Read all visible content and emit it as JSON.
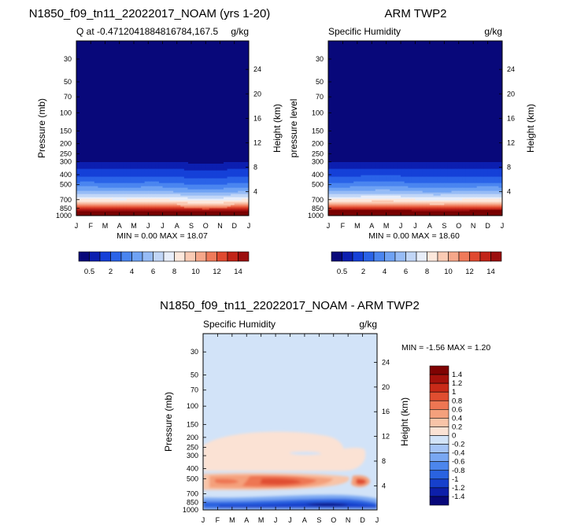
{
  "colors": {
    "full": [
      "#08087a",
      "#0c1fb0",
      "#1540d8",
      "#2a63e8",
      "#4a85f0",
      "#6fa2f4",
      "#97bcf6",
      "#c1d6f7",
      "#e8eefa",
      "#fde8dc",
      "#fbcbb4",
      "#f6a78a",
      "#ef7a5a",
      "#e04a30",
      "#c22418",
      "#9c0e0e",
      "#780000"
    ],
    "diff": [
      "#08087a",
      "#0d1faa",
      "#1640cc",
      "#2a63e0",
      "#4c86ec",
      "#79a7f2",
      "#a5c4f6",
      "#d2e3f8",
      "#fbe2d4",
      "#f8c4a8",
      "#f4a07c",
      "#ee7653",
      "#e04e30",
      "#c92a18",
      "#a5120c",
      "#7f0303"
    ]
  },
  "panels": {
    "model": {
      "title": "N1850_f09_tn11_22022017_NOAM (yrs 1-20)",
      "subtitle_left": "Q at -0.4712041884816784,167.5",
      "subtitle_right": "g/kg",
      "ylabel": "Pressure (mb)",
      "y2label": "Height (km)",
      "minmax": "MIN =   0.00 MAX = 18.07",
      "profile": [
        {
          "p": 1000,
          "v": 17.8
        },
        {
          "p": 925,
          "v": 15.5
        },
        {
          "p": 850,
          "v": 12.6
        },
        {
          "p": 775,
          "v": 9.8
        },
        {
          "p": 700,
          "v": 7.8
        },
        {
          "p": 600,
          "v": 5.2
        },
        {
          "p": 500,
          "v": 3.2
        },
        {
          "p": 400,
          "v": 1.6
        },
        {
          "p": 350,
          "v": 0.9
        },
        {
          "p": 300,
          "v": 0.4
        },
        {
          "p": 250,
          "v": 0.15
        },
        {
          "p": 200,
          "v": 0.05
        },
        {
          "p": 100,
          "v": 0.0
        },
        {
          "p": 20,
          "v": 0.0
        }
      ]
    },
    "obs": {
      "title": "ARM TWP2",
      "subtitle_left": "Specific Humidity",
      "subtitle_right": "g/kg",
      "ylabel": "pressure level",
      "y2label": "Height (km)",
      "minmax": "MIN =   0.00 MAX = 18.60",
      "profile": [
        {
          "p": 1000,
          "v": 18.3
        },
        {
          "p": 925,
          "v": 16.0
        },
        {
          "p": 850,
          "v": 13.0
        },
        {
          "p": 775,
          "v": 10.0
        },
        {
          "p": 700,
          "v": 8.0
        },
        {
          "p": 600,
          "v": 5.4
        },
        {
          "p": 500,
          "v": 3.3
        },
        {
          "p": 400,
          "v": 1.7
        },
        {
          "p": 350,
          "v": 0.95
        },
        {
          "p": 300,
          "v": 0.45
        },
        {
          "p": 250,
          "v": 0.15
        },
        {
          "p": 200,
          "v": 0.05
        },
        {
          "p": 100,
          "v": 0.0
        },
        {
          "p": 20,
          "v": 0.0
        }
      ]
    },
    "diff": {
      "title": "N1850_f09_tn11_22022017_NOAM - ARM TWP2",
      "subtitle_left": "Specific Humidity",
      "subtitle_right": "g/kg",
      "ylabel": "Pressure (mb)",
      "y2label": "Height (km)",
      "minmax": "MIN =  -1.56 MAX =   1.20",
      "background_level": "-0.2 to 0",
      "features": [
        {
          "kind": "positive band",
          "p_top": 160,
          "p_bottom": 420,
          "value": 0.1
        },
        {
          "kind": "positive band",
          "p_top": 440,
          "p_bottom": 640,
          "value": 0.6
        },
        {
          "kind": "negative band",
          "p_top": 760,
          "p_bottom": 1000,
          "value": -0.8
        }
      ]
    }
  },
  "chart_data": [
    {
      "type": "heatmap",
      "title": "N1850_f09_tn11_22022017_NOAM (yrs 1-20)",
      "subtitle": "Q at -0.4712041884816784,167.5",
      "units": "g/kg",
      "xlabel": "",
      "ylabel": "Pressure (mb)",
      "y2label": "Height (km)",
      "x_ticks": [
        "J",
        "F",
        "M",
        "A",
        "M",
        "J",
        "J",
        "A",
        "S",
        "O",
        "N",
        "D",
        "J"
      ],
      "y_ticks": [
        30,
        50,
        70,
        100,
        150,
        200,
        250,
        300,
        400,
        500,
        700,
        850,
        1000
      ],
      "y2_ticks": [
        24,
        20,
        16,
        12,
        8,
        4
      ],
      "ylim": [
        1000,
        20
      ],
      "min": 0.0,
      "max": 18.07,
      "colorbar_levels": [
        0.5,
        1,
        2,
        3,
        4,
        5,
        6,
        7,
        8,
        9,
        10,
        11,
        12,
        13,
        14,
        15
      ],
      "colorbar_labels": [
        "0.5",
        "2",
        "4",
        "6",
        "8",
        "10",
        "12",
        "14"
      ]
    },
    {
      "type": "heatmap",
      "title": "ARM TWP2",
      "subtitle": "Specific Humidity",
      "units": "g/kg",
      "xlabel": "",
      "ylabel": "pressure level",
      "y2label": "Height (km)",
      "x_ticks": [
        "J",
        "F",
        "M",
        "A",
        "M",
        "J",
        "J",
        "A",
        "S",
        "O",
        "N",
        "D",
        "J"
      ],
      "y_ticks": [
        30,
        50,
        70,
        100,
        150,
        200,
        250,
        300,
        400,
        500,
        700,
        850,
        1000
      ],
      "y2_ticks": [
        24,
        20,
        16,
        12,
        8,
        4
      ],
      "ylim": [
        1000,
        20
      ],
      "min": 0.0,
      "max": 18.6,
      "colorbar_levels": [
        0.5,
        1,
        2,
        3,
        4,
        5,
        6,
        7,
        8,
        9,
        10,
        11,
        12,
        13,
        14,
        15
      ],
      "colorbar_labels": [
        "0.5",
        "2",
        "4",
        "6",
        "8",
        "10",
        "12",
        "14"
      ]
    },
    {
      "type": "heatmap",
      "title": "N1850_f09_tn11_22022017_NOAM - ARM TWP2",
      "subtitle": "Specific Humidity",
      "units": "g/kg",
      "xlabel": "",
      "ylabel": "Pressure (mb)",
      "y2label": "Height (km)",
      "x_ticks": [
        "J",
        "F",
        "M",
        "A",
        "M",
        "J",
        "J",
        "A",
        "S",
        "O",
        "N",
        "D",
        "J"
      ],
      "y_ticks": [
        30,
        50,
        70,
        100,
        150,
        200,
        250,
        300,
        400,
        500,
        700,
        850,
        1000
      ],
      "y2_ticks": [
        24,
        20,
        16,
        12,
        8,
        4
      ],
      "ylim": [
        1000,
        20
      ],
      "min": -1.56,
      "max": 1.2,
      "colorbar_levels": [
        -1.4,
        -1.2,
        -1,
        -0.8,
        -0.6,
        -0.4,
        -0.2,
        0,
        0.2,
        0.4,
        0.6,
        0.8,
        1,
        1.2,
        1.4
      ],
      "colorbar_labels": [
        "1.4",
        "1.2",
        "1",
        "0.8",
        "0.6",
        "0.4",
        "0.2",
        "0",
        "-0.2",
        "-0.4",
        "-0.6",
        "-0.8",
        "-1",
        "-1.2",
        "-1.4"
      ]
    }
  ]
}
